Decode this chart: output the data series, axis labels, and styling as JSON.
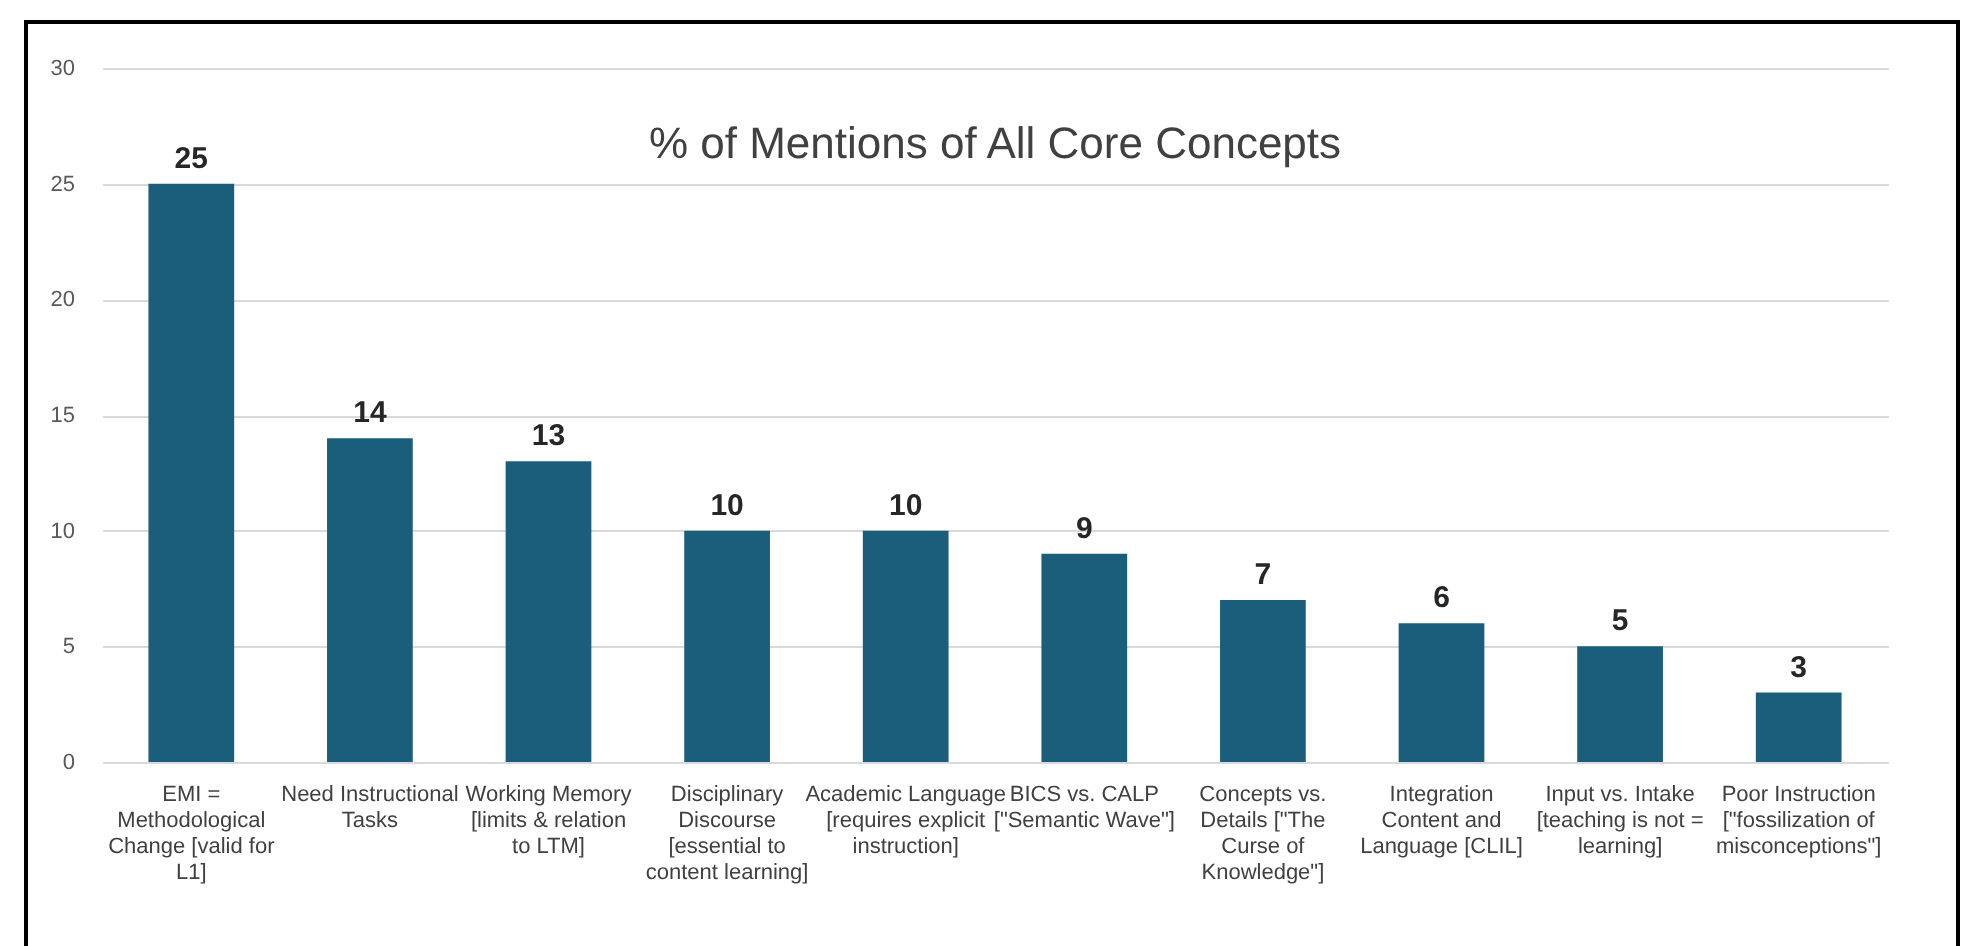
{
  "chart_data": {
    "type": "bar",
    "title": "% of Mentions of All Core Concepts",
    "categories": [
      "EMI = Methodological Change [valid for L1]",
      "Need Instructional Tasks",
      "Working Memory [limits & relation to LTM]",
      "Disciplinary Discourse [essential to content learning]",
      "Academic Language [requires explicit instruction]",
      "BICS vs. CALP [\"Semantic Wave\"]",
      "Concepts vs. Details [\"The Curse of Knowledge\"]",
      "Integration Content and Language [CLIL]",
      "Input vs. Intake [teaching is not = learning]",
      "Poor Instruction [\"fossilization of misconceptions\"]"
    ],
    "values": [
      25,
      14,
      13,
      10,
      10,
      9,
      7,
      6,
      5,
      3
    ],
    "color": "#1b5e7b",
    "ylim": [
      0,
      30
    ],
    "yticks": [
      0,
      5,
      10,
      15,
      20,
      25,
      30
    ],
    "grid": "y",
    "data_labels": true
  }
}
